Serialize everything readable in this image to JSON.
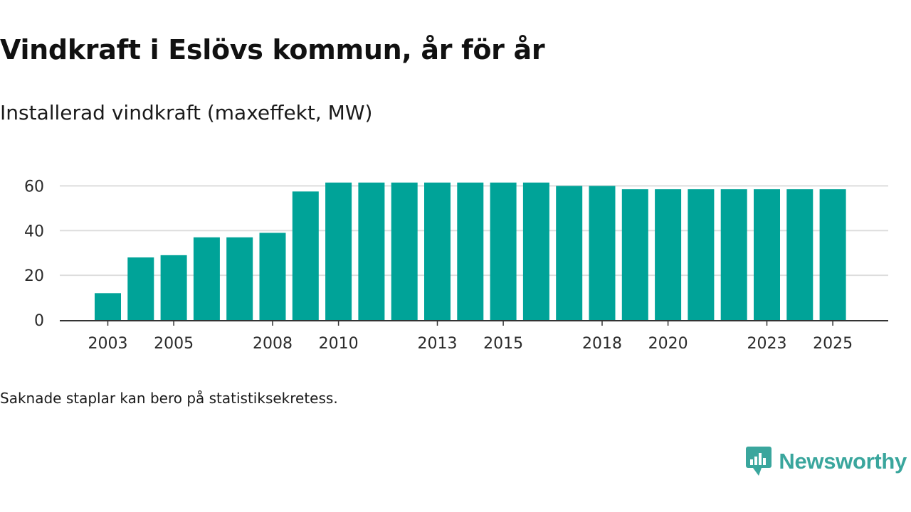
{
  "title": "Vindkraft i Eslövs kommun, år för år",
  "subtitle": "Installerad vindkraft (maxeffekt, MW)",
  "note": "Saknade staplar kan bero på statistiksekretess.",
  "brand": {
    "name": "Newsworthy",
    "color": "#3aa69d",
    "icon": "chart-bubble-icon"
  },
  "colors": {
    "bar": "#00a398",
    "grid": "#dddddd",
    "axis": "#333333"
  },
  "chart_data": {
    "type": "bar",
    "title": "Vindkraft i Eslövs kommun, år för år",
    "ylabel": "Installerad vindkraft (maxeffekt, MW)",
    "xlabel": "",
    "ylim": [
      0,
      70
    ],
    "yticks": [
      0,
      20,
      40,
      60
    ],
    "categories": [
      "2003",
      "2004",
      "2005",
      "2006",
      "2007",
      "2008",
      "2009",
      "2010",
      "2011",
      "2012",
      "2013",
      "2014",
      "2015",
      "2016",
      "2017",
      "2018",
      "2019",
      "2020",
      "2021",
      "2022",
      "2023",
      "2024",
      "2025"
    ],
    "values": [
      12,
      28,
      29,
      37,
      37,
      39,
      57.5,
      61.5,
      61.5,
      61.5,
      61.5,
      61.5,
      61.5,
      61.5,
      60,
      60,
      58.5,
      58.5,
      58.5,
      58.5,
      58.5,
      58.5,
      58.5
    ],
    "xtick_labels": [
      "2003",
      "2005",
      "2008",
      "2010",
      "2013",
      "2015",
      "2018",
      "2020",
      "2023",
      "2025"
    ],
    "grid": true
  }
}
